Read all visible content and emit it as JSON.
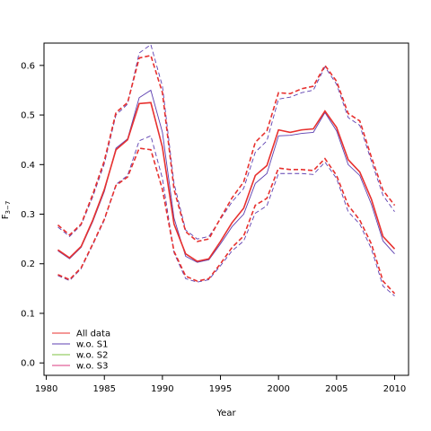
{
  "chart_data": {
    "type": "line",
    "xlabel": "Year",
    "ylabel": "F",
    "ylabel_subscript": "3−7",
    "xlim": [
      1979.8,
      2011.2
    ],
    "ylim": [
      -0.025,
      0.645
    ],
    "xticks": [
      1980,
      1985,
      1990,
      1995,
      2000,
      2005,
      2010
    ],
    "yticks": [
      0.0,
      0.1,
      0.2,
      0.3,
      0.4,
      0.5,
      0.6
    ],
    "ytick_labels": [
      "0.0",
      "0.1",
      "0.2",
      "0.3",
      "0.4",
      "0.5",
      "0.6"
    ],
    "legend_position": "bottom-left",
    "x": [
      1981,
      1982,
      1983,
      1984,
      1985,
      1986,
      1987,
      1988,
      1989,
      1990,
      1991,
      1992,
      1993,
      1994,
      1995,
      1996,
      1997,
      1998,
      1999,
      2000,
      2001,
      2002,
      2003,
      2004,
      2005,
      2006,
      2007,
      2008,
      2009,
      2010
    ],
    "series": [
      {
        "name": "All data",
        "color": "#e8312f",
        "width": 1.6,
        "estimate": [
          0.228,
          0.212,
          0.235,
          0.288,
          0.35,
          0.43,
          0.45,
          0.523,
          0.525,
          0.435,
          0.28,
          0.22,
          0.205,
          0.21,
          0.245,
          0.283,
          0.312,
          0.378,
          0.398,
          0.47,
          0.465,
          0.47,
          0.472,
          0.508,
          0.475,
          0.41,
          0.385,
          0.33,
          0.255,
          0.23
        ],
        "upper": [
          0.278,
          0.258,
          0.28,
          0.34,
          0.408,
          0.505,
          0.525,
          0.615,
          0.62,
          0.545,
          0.35,
          0.265,
          0.245,
          0.25,
          0.292,
          0.333,
          0.365,
          0.445,
          0.468,
          0.545,
          0.543,
          0.553,
          0.558,
          0.6,
          0.568,
          0.503,
          0.488,
          0.415,
          0.348,
          0.318
        ],
        "lower": [
          0.178,
          0.168,
          0.192,
          0.24,
          0.29,
          0.358,
          0.375,
          0.433,
          0.43,
          0.35,
          0.225,
          0.175,
          0.165,
          0.17,
          0.2,
          0.233,
          0.256,
          0.318,
          0.332,
          0.393,
          0.39,
          0.39,
          0.388,
          0.412,
          0.378,
          0.318,
          0.288,
          0.24,
          0.165,
          0.14
        ],
        "dash_width": 1.6
      },
      {
        "name": "w.o. S1",
        "color": "#5c3fb0",
        "width": 0.9,
        "estimate": [
          0.226,
          0.21,
          0.233,
          0.285,
          0.346,
          0.433,
          0.452,
          0.535,
          0.55,
          0.465,
          0.292,
          0.215,
          0.203,
          0.208,
          0.24,
          0.275,
          0.3,
          0.362,
          0.382,
          0.458,
          0.459,
          0.463,
          0.465,
          0.505,
          0.468,
          0.4,
          0.378,
          0.32,
          0.246,
          0.22
        ],
        "upper": [
          0.274,
          0.255,
          0.278,
          0.335,
          0.402,
          0.5,
          0.522,
          0.625,
          0.642,
          0.558,
          0.362,
          0.268,
          0.25,
          0.255,
          0.29,
          0.325,
          0.352,
          0.425,
          0.448,
          0.532,
          0.536,
          0.545,
          0.55,
          0.597,
          0.562,
          0.495,
          0.479,
          0.407,
          0.338,
          0.305
        ],
        "lower": [
          0.176,
          0.166,
          0.19,
          0.238,
          0.288,
          0.36,
          0.378,
          0.448,
          0.458,
          0.372,
          0.222,
          0.17,
          0.163,
          0.168,
          0.196,
          0.226,
          0.246,
          0.302,
          0.317,
          0.382,
          0.382,
          0.382,
          0.38,
          0.405,
          0.372,
          0.305,
          0.28,
          0.23,
          0.155,
          0.135
        ],
        "dash_width": 0.9
      },
      {
        "name": "w.o. S2",
        "color": "#7dc242",
        "width": 0.9,
        "estimate": [
          0.228,
          0.212,
          0.235,
          0.288,
          0.35,
          0.43,
          0.45,
          0.523,
          0.525,
          0.435,
          0.28,
          0.22,
          0.205,
          0.21,
          0.245,
          0.283,
          0.312,
          0.378,
          0.398,
          0.47,
          0.465,
          0.47,
          0.472,
          0.508,
          0.475,
          0.41,
          0.385,
          0.33,
          0.255,
          0.23
        ],
        "upper": [
          0.278,
          0.258,
          0.28,
          0.34,
          0.408,
          0.505,
          0.525,
          0.615,
          0.62,
          0.545,
          0.35,
          0.265,
          0.245,
          0.25,
          0.292,
          0.333,
          0.365,
          0.445,
          0.468,
          0.545,
          0.543,
          0.553,
          0.558,
          0.6,
          0.568,
          0.503,
          0.488,
          0.415,
          0.348,
          0.318
        ],
        "lower": [
          0.178,
          0.168,
          0.192,
          0.24,
          0.29,
          0.358,
          0.375,
          0.433,
          0.43,
          0.35,
          0.225,
          0.175,
          0.165,
          0.17,
          0.2,
          0.233,
          0.256,
          0.318,
          0.332,
          0.393,
          0.39,
          0.39,
          0.388,
          0.412,
          0.378,
          0.318,
          0.288,
          0.24,
          0.165,
          0.14
        ],
        "dash_width": 0.9
      },
      {
        "name": "w.o. S3",
        "color": "#d9387f",
        "width": 0.9,
        "estimate": [
          0.228,
          0.212,
          0.235,
          0.288,
          0.35,
          0.43,
          0.45,
          0.523,
          0.525,
          0.435,
          0.28,
          0.22,
          0.205,
          0.21,
          0.245,
          0.283,
          0.312,
          0.378,
          0.398,
          0.47,
          0.465,
          0.47,
          0.472,
          0.508,
          0.475,
          0.41,
          0.385,
          0.33,
          0.255,
          0.23
        ],
        "upper": [
          0.278,
          0.258,
          0.28,
          0.34,
          0.408,
          0.505,
          0.525,
          0.615,
          0.62,
          0.545,
          0.35,
          0.265,
          0.245,
          0.25,
          0.292,
          0.333,
          0.365,
          0.445,
          0.468,
          0.545,
          0.543,
          0.553,
          0.558,
          0.6,
          0.568,
          0.503,
          0.488,
          0.415,
          0.348,
          0.318
        ],
        "lower": [
          0.178,
          0.168,
          0.192,
          0.24,
          0.29,
          0.358,
          0.375,
          0.433,
          0.43,
          0.35,
          0.225,
          0.175,
          0.165,
          0.17,
          0.2,
          0.233,
          0.256,
          0.318,
          0.332,
          0.393,
          0.39,
          0.39,
          0.388,
          0.412,
          0.378,
          0.318,
          0.288,
          0.24,
          0.165,
          0.14
        ],
        "dash_width": 0.9
      }
    ],
    "draw_order": [
      2,
      3,
      1,
      0
    ]
  }
}
